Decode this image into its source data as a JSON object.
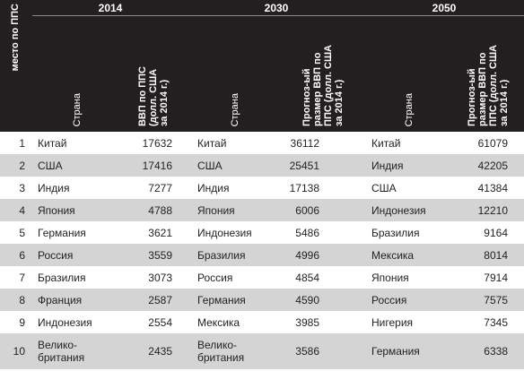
{
  "header": {
    "years": [
      "2014",
      "2030",
      "2050"
    ],
    "rank_label": "место по ППС",
    "country_label": "Страна",
    "gdp_label": "ВВП по ППС\n(долл. США\nза 2014 г.)",
    "forecast_label": "Прогноз-ый\nразмер ВВП по\nППС (долл. США\nза 2014 г.)"
  },
  "rows": [
    {
      "rank": "1",
      "c2014": "Китай",
      "v2014": "17632",
      "c2030": "Китай",
      "v2030": "36112",
      "c2050": "Китай",
      "v2050": "61079"
    },
    {
      "rank": "2",
      "c2014": "США",
      "v2014": "17416",
      "c2030": "США",
      "v2030": "25451",
      "c2050": "Индия",
      "v2050": "42205"
    },
    {
      "rank": "3",
      "c2014": "Индия",
      "v2014": "7277",
      "c2030": "Индия",
      "v2030": "17138",
      "c2050": "США",
      "v2050": "41384"
    },
    {
      "rank": "4",
      "c2014": "Япония",
      "v2014": "4788",
      "c2030": "Япония",
      "v2030": "6006",
      "c2050": "Индонезия",
      "v2050": "12210"
    },
    {
      "rank": "5",
      "c2014": "Германия",
      "v2014": "3621",
      "c2030": "Индонезия",
      "v2030": "5486",
      "c2050": "Бразилия",
      "v2050": "9164"
    },
    {
      "rank": "6",
      "c2014": "Россия",
      "v2014": "3559",
      "c2030": "Бразилия",
      "v2030": "4996",
      "c2050": "Мексика",
      "v2050": "8014"
    },
    {
      "rank": "7",
      "c2014": "Бразилия",
      "v2014": "3073",
      "c2030": "Россия",
      "v2030": "4854",
      "c2050": "Япония",
      "v2050": "7914"
    },
    {
      "rank": "8",
      "c2014": "Франция",
      "v2014": "2587",
      "c2030": "Германия",
      "v2030": "4590",
      "c2050": "Россия",
      "v2050": "7575"
    },
    {
      "rank": "9",
      "c2014": "Индонезия",
      "v2014": "2554",
      "c2030": "Мексика",
      "v2030": "3985",
      "c2050": "Нигерия",
      "v2050": "7345"
    },
    {
      "rank": "10",
      "c2014": "Велико-\nбритания",
      "v2014": "2435",
      "c2030": "Велико-\nбритания",
      "v2030": "3586",
      "c2050": "Германия",
      "v2050": "6338"
    }
  ]
}
